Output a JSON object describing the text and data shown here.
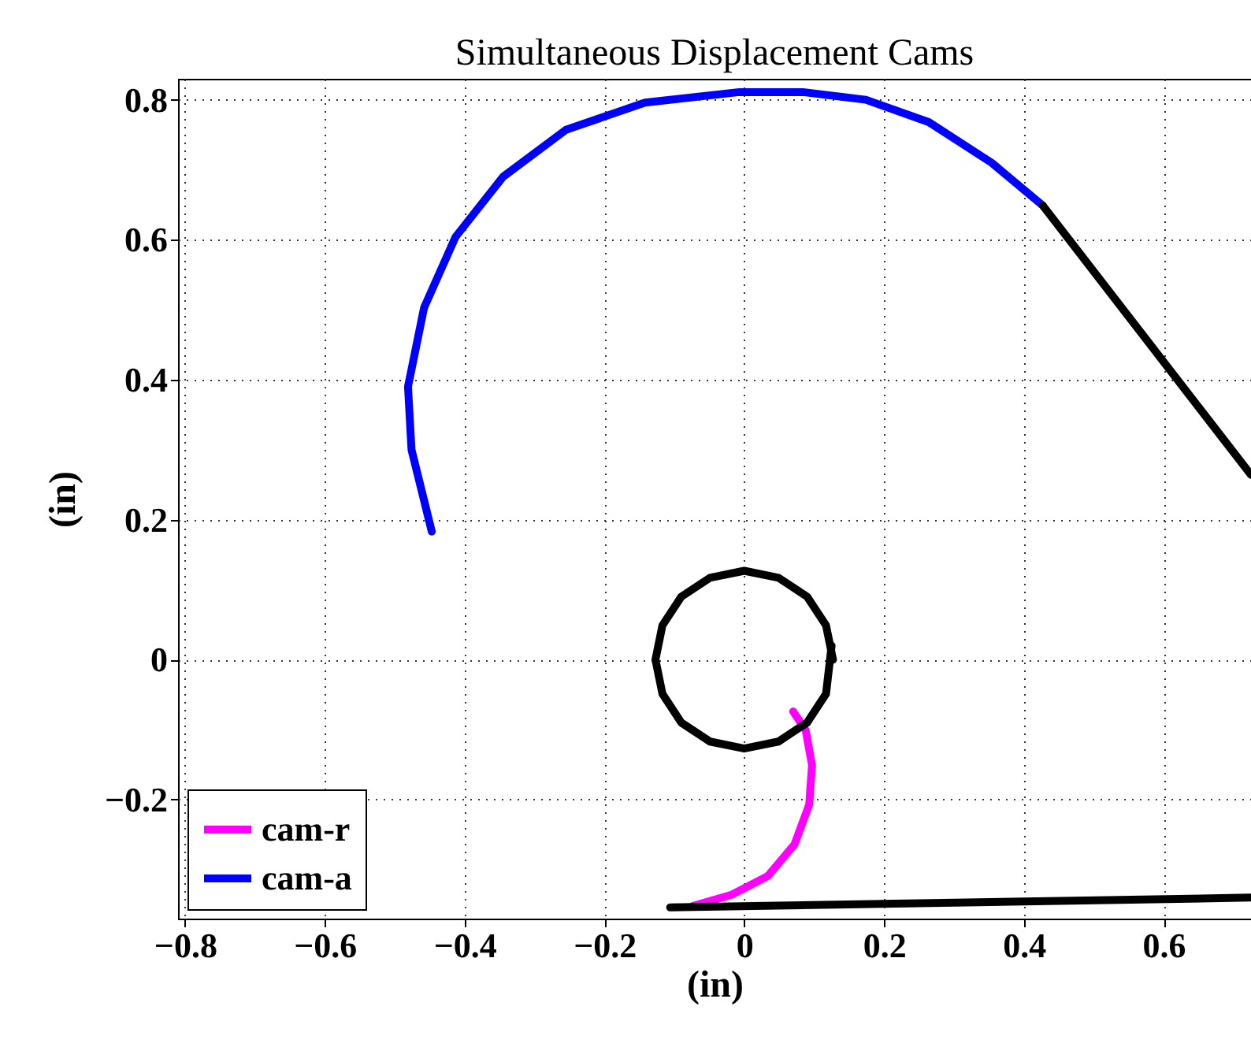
{
  "chart_data": {
    "type": "line",
    "title": "Simultaneous Displacement Cams",
    "xlabel": "(in)",
    "ylabel": "(in)",
    "xlim": [
      -0.81,
      0.725
    ],
    "ylim": [
      -0.37,
      0.83
    ],
    "xticks": [
      -0.8,
      -0.6,
      -0.4,
      -0.2,
      0,
      0.2,
      0.4,
      0.6
    ],
    "yticks": [
      -0.2,
      0,
      0.2,
      0.4,
      0.6,
      0.8
    ],
    "grid": true,
    "legend": "bottom left",
    "series": [
      {
        "name": "cam-r",
        "color": "#ff00ff",
        "x": [
          0.07,
          0.088,
          0.097,
          0.093,
          0.072,
          0.034,
          -0.018,
          -0.074
        ],
        "values": [
          -0.074,
          -0.101,
          -0.151,
          -0.207,
          -0.264,
          -0.309,
          -0.336,
          -0.352
        ]
      },
      {
        "name": "cam-a",
        "color": "#0000ff",
        "x": [
          -0.447,
          -0.476,
          -0.481,
          -0.458,
          -0.413,
          -0.345,
          -0.255,
          -0.142,
          -0.007,
          0.084,
          0.174,
          0.264,
          0.354,
          0.427
        ],
        "values": [
          0.183,
          0.3,
          0.39,
          0.503,
          0.604,
          0.69,
          0.757,
          0.796,
          0.811,
          0.811,
          0.8,
          0.768,
          0.71,
          0.649
        ]
      },
      {
        "color": "#000000",
        "x": [
          0.427,
          0.725
        ],
        "values": [
          0.649,
          0.264
        ]
      },
      {
        "color": "#000000",
        "x": [
          -0.106,
          0.725
        ],
        "values": [
          -0.354,
          -0.34
        ]
      },
      {
        "color": "#000000",
        "x": [
          0.127,
          0.117,
          0.09,
          0.049,
          0,
          -0.049,
          -0.09,
          -0.117,
          -0.127,
          -0.117,
          -0.09,
          -0.049,
          0,
          0.049,
          0.09,
          0.117,
          0.125
        ],
        "values": [
          0,
          0.049,
          0.09,
          0.117,
          0.127,
          0.117,
          0.09,
          0.049,
          0,
          -0.049,
          -0.09,
          -0.117,
          -0.127,
          -0.117,
          -0.09,
          -0.049,
          0.02
        ]
      }
    ]
  }
}
